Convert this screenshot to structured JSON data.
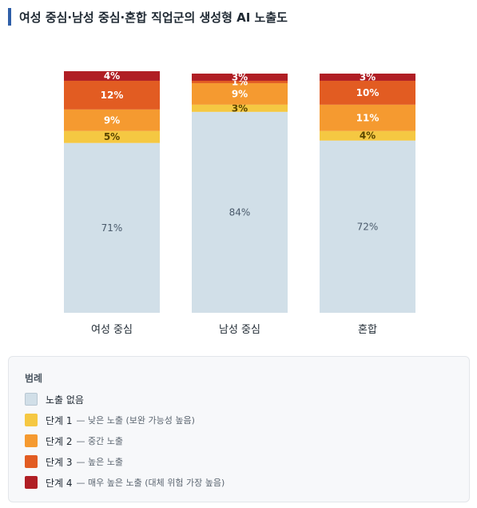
{
  "header": {
    "title": "여성 중심·남성 중심·혼합 직업군의 생성형 AI 노출도"
  },
  "chart_data": {
    "type": "bar",
    "stacked": true,
    "categories": [
      "여성 중심",
      "남성 중심",
      "혼합"
    ],
    "ylim": [
      0,
      100
    ],
    "grid": false,
    "legend_position": "bottom",
    "series": [
      {
        "name": "노출 없음",
        "values": [
          71,
          84,
          72
        ],
        "labels": [
          "71%",
          "84%",
          "72%"
        ],
        "color": "#d1dfe8",
        "text_color": "#4a5a6b"
      },
      {
        "name": "단계 1",
        "values": [
          5,
          3,
          4
        ],
        "labels": [
          "5%",
          "3%",
          "4%"
        ],
        "color": "#f5c842",
        "text_color": "#5a4500"
      },
      {
        "name": "단계 2",
        "values": [
          9,
          9,
          11
        ],
        "labels": [
          "9%",
          "9%",
          "11%"
        ],
        "color": "#f59a30",
        "text_color": "#ffffff"
      },
      {
        "name": "단계 3",
        "values": [
          12,
          1,
          10
        ],
        "labels": [
          "12%",
          "1%",
          "10%"
        ],
        "color": "#e25c22",
        "text_color": "#ffffff"
      },
      {
        "name": "단계 4",
        "values": [
          4,
          3,
          3
        ],
        "labels": [
          "4%",
          "3%",
          "3%"
        ],
        "color": "#b01e24",
        "text_color": "#ffffff"
      }
    ]
  },
  "legend": {
    "heading": "범례",
    "items": [
      {
        "label": "노출 없음",
        "desc": ""
      },
      {
        "label": "단계 1",
        "desc": "— 낮은 노출 (보완 가능성 높음)"
      },
      {
        "label": "단계 2",
        "desc": "— 중간 노출"
      },
      {
        "label": "단계 3",
        "desc": "— 높은 노출"
      },
      {
        "label": "단계 4",
        "desc": "— 매우 높은 노출 (대체 위험 가장 높음)"
      }
    ]
  }
}
